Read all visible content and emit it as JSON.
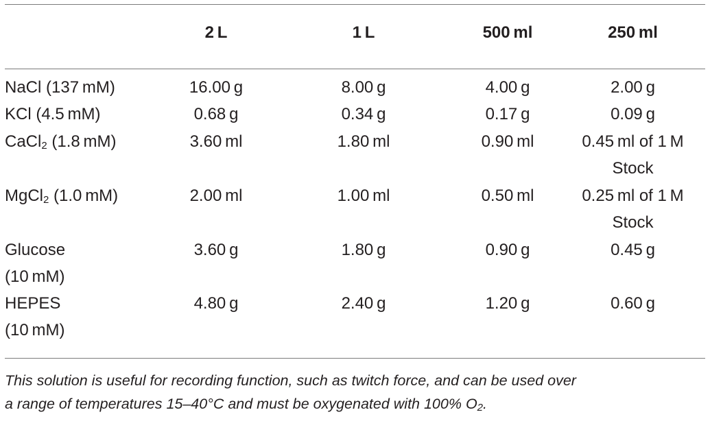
{
  "table": {
    "headers": [
      "",
      "2 L",
      "1 L",
      "500 ml",
      "250 ml"
    ],
    "rows": [
      {
        "label": {
          "pre": "NaCl (137 mM)",
          "sub": "",
          "post": ""
        },
        "values": [
          "16.00 g",
          "8.00 g",
          "4.00 g",
          "2.00 g"
        ]
      },
      {
        "label": {
          "pre": "KCl (4.5 mM)",
          "sub": "",
          "post": ""
        },
        "values": [
          "0.68 g",
          "0.34 g",
          "0.17 g",
          "0.09 g"
        ]
      },
      {
        "label": {
          "pre": "CaCl",
          "sub": "2",
          "post": " (1.8 mM)"
        },
        "values": [
          "3.60 ml",
          "1.80 ml",
          "0.90 ml",
          "0.45 ml of 1 M",
          "Stock"
        ]
      },
      {
        "label": {
          "pre": "MgCl",
          "sub": "2",
          "post": " (1.0 mM)"
        },
        "values": [
          "2.00 ml",
          "1.00 ml",
          "0.50 ml",
          "0.25 ml of 1 M",
          "Stock"
        ]
      },
      {
        "label": {
          "pre": "Glucose",
          "sub": "",
          "post": "",
          "line2": "(10 mM)"
        },
        "values": [
          "3.60 g",
          "1.80 g",
          "0.90 g",
          "0.45 g"
        ]
      },
      {
        "label": {
          "pre": "HEPES",
          "sub": "",
          "post": "",
          "line2": "(10 mM)"
        },
        "values": [
          "4.80 g",
          "2.40 g",
          "1.20 g",
          "0.60 g"
        ]
      }
    ]
  },
  "footnote": {
    "line1": "This solution is useful for recording function, such as twitch force, and can be used over",
    "line2_pre": "a range of temperatures 15–40°C and must be oxygenated with 100% O",
    "line2_sub": "2",
    "line2_post": "."
  }
}
